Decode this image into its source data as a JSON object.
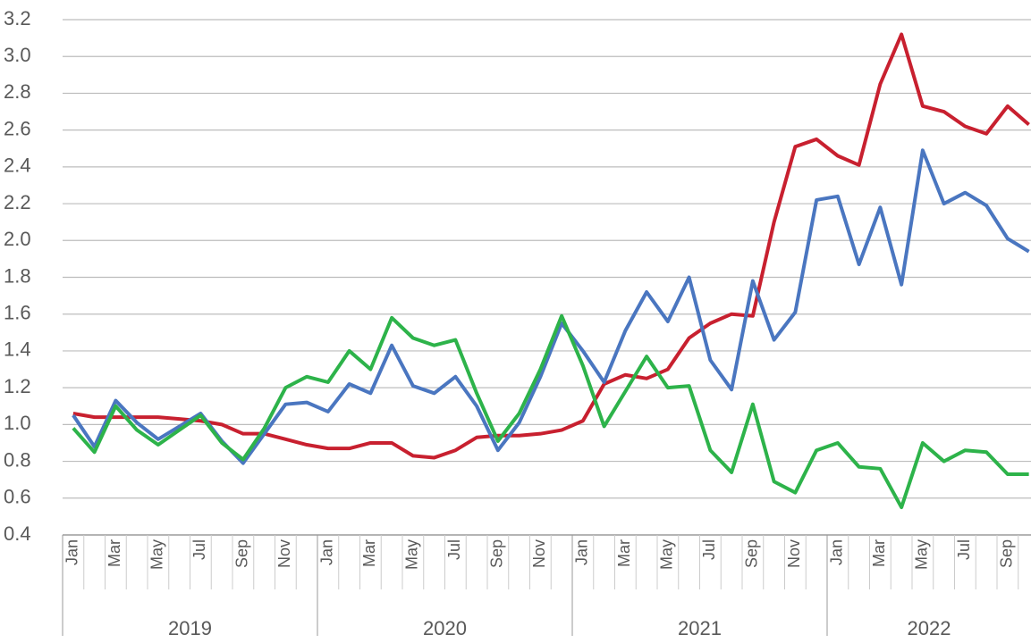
{
  "chart_data": {
    "type": "line",
    "categories": [
      "Jan",
      null,
      "Mar",
      null,
      "May",
      null,
      "Jul",
      null,
      "Sep",
      null,
      "Nov",
      null,
      "Jan",
      null,
      "Mar",
      null,
      "May",
      null,
      "Jul",
      null,
      "Sep",
      null,
      "Nov",
      null,
      "Jan",
      null,
      "Mar",
      null,
      "May",
      null,
      "Jul",
      null,
      "Sep",
      null,
      "Nov",
      null,
      "Jan",
      null,
      "Mar",
      null,
      "May",
      null,
      "Jul",
      null,
      "Sep",
      null
    ],
    "years": [
      "2019",
      "2020",
      "2021",
      "2022"
    ],
    "series": [
      {
        "color": "#c8202f",
        "values": [
          1.06,
          1.04,
          1.04,
          1.04,
          1.04,
          1.03,
          1.02,
          1.0,
          0.95,
          0.95,
          0.92,
          0.89,
          0.87,
          0.87,
          0.9,
          0.9,
          0.83,
          0.82,
          0.86,
          0.93,
          0.94,
          0.94,
          0.95,
          0.97,
          1.02,
          1.22,
          1.27,
          1.25,
          1.3,
          1.47,
          1.55,
          1.6,
          1.59,
          2.1,
          2.51,
          2.55,
          2.46,
          2.41,
          2.85,
          3.12,
          2.73,
          2.7,
          2.62,
          2.58,
          2.73,
          2.63
        ]
      },
      {
        "color": "#4a76c0",
        "values": [
          1.05,
          0.88,
          1.13,
          1.01,
          0.92,
          0.99,
          1.06,
          0.91,
          0.79,
          0.95,
          1.11,
          1.12,
          1.07,
          1.22,
          1.17,
          1.43,
          1.21,
          1.17,
          1.26,
          1.1,
          0.86,
          1.01,
          1.26,
          1.55,
          1.4,
          1.23,
          1.51,
          1.72,
          1.56,
          1.8,
          1.35,
          1.19,
          1.78,
          1.46,
          1.61,
          2.22,
          2.24,
          1.87,
          2.18,
          1.76,
          2.49,
          2.2,
          2.26,
          2.19,
          2.01,
          1.94
        ]
      },
      {
        "color": "#2db34a",
        "values": [
          0.98,
          0.85,
          1.1,
          0.97,
          0.89,
          0.97,
          1.05,
          0.9,
          0.81,
          0.98,
          1.2,
          1.26,
          1.23,
          1.4,
          1.3,
          1.58,
          1.47,
          1.43,
          1.46,
          1.17,
          0.91,
          1.06,
          1.3,
          1.59,
          1.32,
          0.99,
          1.18,
          1.37,
          1.2,
          1.21,
          0.86,
          0.74,
          1.11,
          0.69,
          0.63,
          0.86,
          0.9,
          0.77,
          0.76,
          0.55,
          0.9,
          0.8,
          0.86,
          0.85,
          0.73,
          0.73
        ]
      }
    ],
    "ylim": [
      0.4,
      3.2
    ],
    "yticks": [
      {
        "value": 0.4,
        "label": "0.4"
      },
      {
        "value": 0.6,
        "label": "0.6"
      },
      {
        "value": 0.8,
        "label": "0.8"
      },
      {
        "value": 1.0,
        "label": "1.0"
      },
      {
        "value": 1.2,
        "label": "1.2"
      },
      {
        "value": 1.4,
        "label": "1.4"
      },
      {
        "value": 1.6,
        "label": "1.6"
      },
      {
        "value": 1.8,
        "label": "1.8"
      },
      {
        "value": 2.0,
        "label": "2.0"
      },
      {
        "value": 2.2,
        "label": "2.2"
      },
      {
        "value": 2.4,
        "label": "2.4"
      },
      {
        "value": 2.6,
        "label": "2.6"
      },
      {
        "value": 2.8,
        "label": "2.8"
      },
      {
        "value": 3.0,
        "label": "3.0"
      },
      {
        "value": 3.2,
        "label": "3.2"
      }
    ],
    "grid": true
  }
}
